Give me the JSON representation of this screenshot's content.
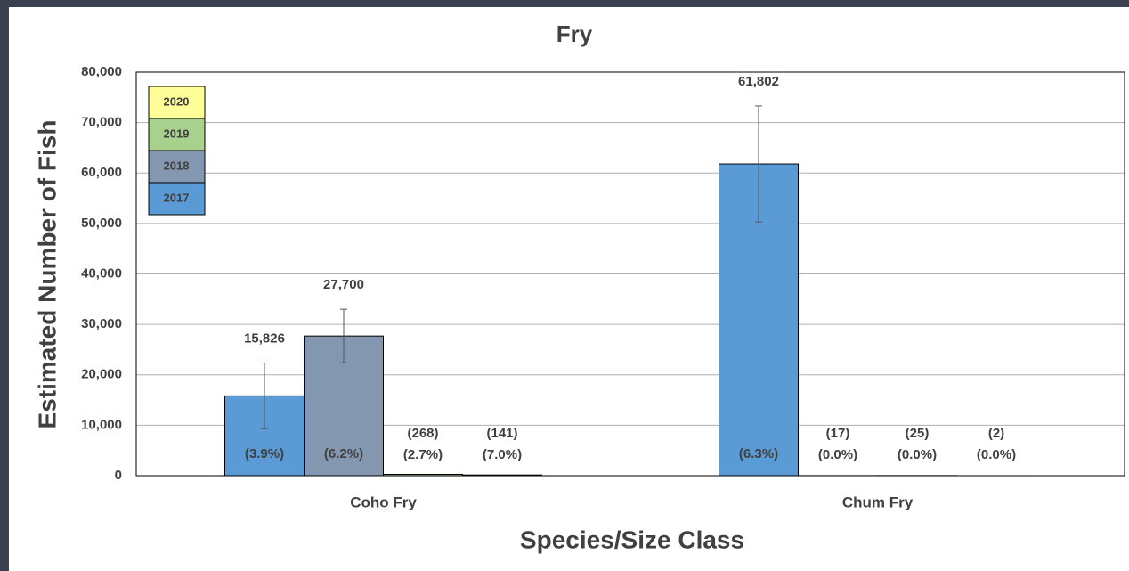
{
  "chart_data": {
    "type": "bar",
    "title": "Fry",
    "x_label": "Species/Size Class",
    "y_label": "Estimated Number of Fish",
    "categories": [
      "Coho Fry",
      "Chum Fry"
    ],
    "series": [
      {
        "name": "2017",
        "color": "#5b9bd5",
        "values": [
          15826,
          61802
        ],
        "value_labels": [
          "15,826",
          "61,802"
        ],
        "percent_labels": [
          "(3.9%)",
          "(6.3%)"
        ],
        "errors": [
          6500,
          11500
        ]
      },
      {
        "name": "2018",
        "color": "#8497b0",
        "values": [
          27700,
          17
        ],
        "value_labels": [
          "27,700",
          "(17)"
        ],
        "percent_labels": [
          "(6.2%)",
          "(0.0%)"
        ],
        "errors": [
          5300,
          null
        ]
      },
      {
        "name": "2019",
        "color": "#a9d18e",
        "values": [
          268,
          25
        ],
        "value_labels": [
          "(268)",
          "(25)"
        ],
        "percent_labels": [
          "(2.7%)",
          "(0.0%)"
        ],
        "errors": [
          null,
          null
        ]
      },
      {
        "name": "2020",
        "color": "#ffff99",
        "values": [
          141,
          2
        ],
        "value_labels": [
          "(141)",
          "(2)"
        ],
        "percent_labels": [
          "(7.0%)",
          "(0.0%)"
        ],
        "errors": [
          null,
          null
        ]
      }
    ],
    "ylim": [
      0,
      80000
    ],
    "yticks": [
      0,
      {
        "value": 10000,
        "label": "10,000"
      },
      {
        "value": 20000,
        "label": "20,000"
      },
      {
        "value": 30000,
        "label": "30,000"
      },
      {
        "value": 40000,
        "label": "40,000"
      },
      {
        "value": 50000,
        "label": "50,000"
      },
      {
        "value": 60000,
        "label": "60,000"
      },
      {
        "value": 70000,
        "label": "70,000"
      },
      {
        "value": 80000,
        "label": "80,000"
      }
    ],
    "grid": true,
    "legend": "upper left"
  }
}
